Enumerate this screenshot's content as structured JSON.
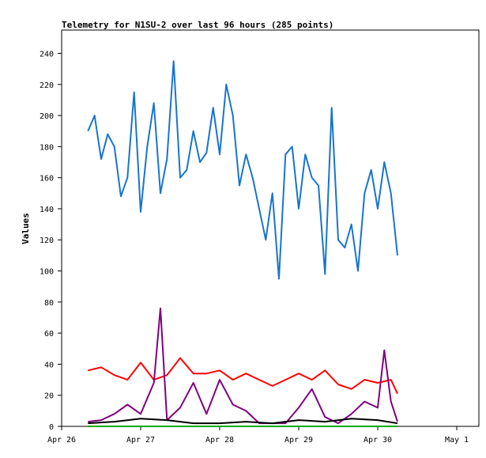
{
  "chart_data": {
    "type": "line",
    "title": "Telemetry for N1SU-2 over last 96 hours (285 points)",
    "ylabel": "Values",
    "xlabel": "",
    "x_tick_labels": [
      "Apr 26",
      "Apr 27",
      "Apr 28",
      "Apr 29",
      "Apr 30",
      "May 1"
    ],
    "y_ticks": [
      0,
      20,
      40,
      60,
      80,
      100,
      120,
      140,
      160,
      180,
      200,
      220,
      240
    ],
    "ylim": [
      0,
      255
    ],
    "x_start": "Apr 26 00:00",
    "x_end": "May 1 00:00",
    "grid": false,
    "legend": "none",
    "series": [
      {
        "color": "#1874cd",
        "x": [
          "Apr 26 08:00",
          "Apr 26 10:00",
          "Apr 26 12:00",
          "Apr 26 14:00",
          "Apr 26 16:00",
          "Apr 26 18:00",
          "Apr 26 20:00",
          "Apr 26 22:00",
          "Apr 27 00:00",
          "Apr 27 02:00",
          "Apr 27 04:00",
          "Apr 27 06:00",
          "Apr 27 08:00",
          "Apr 27 10:00",
          "Apr 27 12:00",
          "Apr 27 14:00",
          "Apr 27 16:00",
          "Apr 27 18:00",
          "Apr 27 20:00",
          "Apr 27 22:00",
          "Apr 28 00:00",
          "Apr 28 02:00",
          "Apr 28 04:00",
          "Apr 28 06:00",
          "Apr 28 08:00",
          "Apr 28 10:00",
          "Apr 28 12:00",
          "Apr 28 14:00",
          "Apr 28 16:00",
          "Apr 28 18:00",
          "Apr 28 20:00",
          "Apr 28 22:00",
          "Apr 29 00:00",
          "Apr 29 02:00",
          "Apr 29 04:00",
          "Apr 29 06:00",
          "Apr 29 08:00",
          "Apr 29 10:00",
          "Apr 29 12:00",
          "Apr 29 14:00",
          "Apr 29 16:00",
          "Apr 29 18:00",
          "Apr 29 20:00",
          "Apr 29 22:00",
          "Apr 30 00:00",
          "Apr 30 02:00",
          "Apr 30 04:00",
          "Apr 30 06:00"
        ],
        "values": [
          190,
          200,
          172,
          188,
          180,
          148,
          160,
          215,
          138,
          180,
          208,
          150,
          172,
          235,
          160,
          165,
          190,
          170,
          176,
          205,
          175,
          220,
          200,
          155,
          175,
          160,
          140,
          120,
          150,
          95,
          175,
          180,
          140,
          175,
          160,
          155,
          98,
          205,
          120,
          115,
          130,
          100,
          150,
          165,
          140,
          170,
          150,
          110
        ]
      },
      {
        "color": "#ff0000",
        "x": [
          "Apr 26 08:00",
          "Apr 26 12:00",
          "Apr 26 16:00",
          "Apr 26 20:00",
          "Apr 27 00:00",
          "Apr 27 04:00",
          "Apr 27 08:00",
          "Apr 27 12:00",
          "Apr 27 16:00",
          "Apr 27 20:00",
          "Apr 28 00:00",
          "Apr 28 04:00",
          "Apr 28 08:00",
          "Apr 28 12:00",
          "Apr 28 16:00",
          "Apr 28 20:00",
          "Apr 29 00:00",
          "Apr 29 04:00",
          "Apr 29 08:00",
          "Apr 29 12:00",
          "Apr 29 16:00",
          "Apr 29 20:00",
          "Apr 30 00:00",
          "Apr 30 04:00",
          "Apr 30 06:00"
        ],
        "values": [
          36,
          38,
          33,
          30,
          41,
          30,
          33,
          44,
          34,
          34,
          36,
          30,
          34,
          30,
          26,
          30,
          34,
          30,
          36,
          27,
          24,
          30,
          28,
          30,
          21
        ]
      },
      {
        "color": "#800080",
        "x": [
          "Apr 26 08:00",
          "Apr 26 12:00",
          "Apr 26 16:00",
          "Apr 26 20:00",
          "Apr 27 00:00",
          "Apr 27 04:00",
          "Apr 27 06:00",
          "Apr 27 08:00",
          "Apr 27 12:00",
          "Apr 27 16:00",
          "Apr 27 20:00",
          "Apr 28 00:00",
          "Apr 28 04:00",
          "Apr 28 08:00",
          "Apr 28 12:00",
          "Apr 28 16:00",
          "Apr 28 20:00",
          "Apr 29 00:00",
          "Apr 29 04:00",
          "Apr 29 08:00",
          "Apr 29 12:00",
          "Apr 29 16:00",
          "Apr 29 20:00",
          "Apr 30 00:00",
          "Apr 30 02:00",
          "Apr 30 04:00",
          "Apr 30 06:00"
        ],
        "values": [
          3,
          4,
          8,
          14,
          8,
          28,
          76,
          4,
          12,
          28,
          8,
          30,
          14,
          10,
          2,
          2,
          2,
          12,
          24,
          6,
          2,
          8,
          16,
          12,
          49,
          16,
          3
        ]
      },
      {
        "color": "#000000",
        "x": [
          "Apr 26 08:00",
          "Apr 26 16:00",
          "Apr 27 00:00",
          "Apr 27 08:00",
          "Apr 27 16:00",
          "Apr 28 00:00",
          "Apr 28 08:00",
          "Apr 28 16:00",
          "Apr 29 00:00",
          "Apr 29 08:00",
          "Apr 29 16:00",
          "Apr 30 00:00",
          "Apr 30 06:00"
        ],
        "values": [
          2,
          3,
          5,
          4,
          2,
          2,
          3,
          2,
          4,
          3,
          5,
          4,
          2
        ]
      },
      {
        "color": "#00aa00",
        "x": [
          "Apr 26 08:00",
          "Apr 30 06:00"
        ],
        "values": [
          0,
          0
        ]
      }
    ]
  }
}
